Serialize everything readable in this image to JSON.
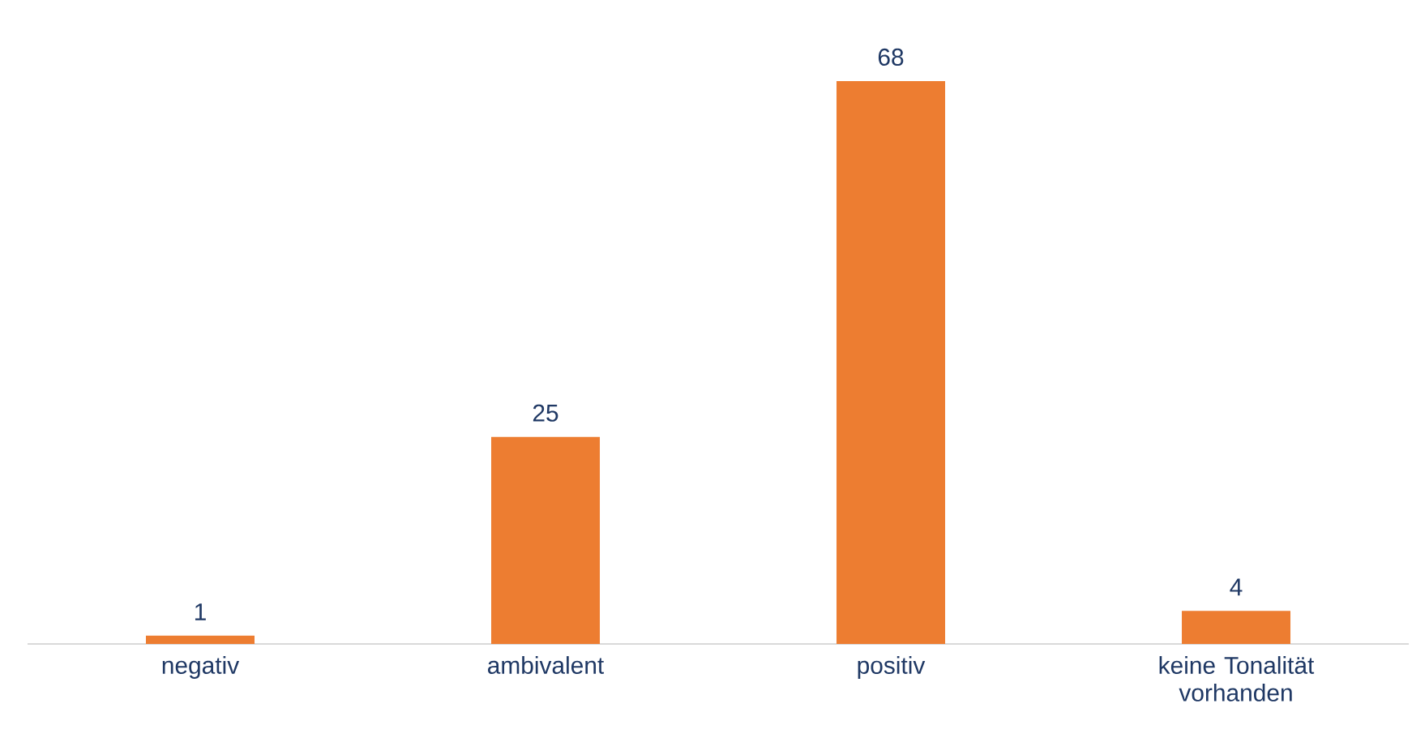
{
  "chart_data": {
    "type": "bar",
    "categories": [
      "negativ",
      "ambivalent",
      "positiv",
      "keine Tonalität vorhanden"
    ],
    "values": [
      1,
      25,
      68,
      4
    ],
    "color": "#ed7d31",
    "data_labels": true
  }
}
